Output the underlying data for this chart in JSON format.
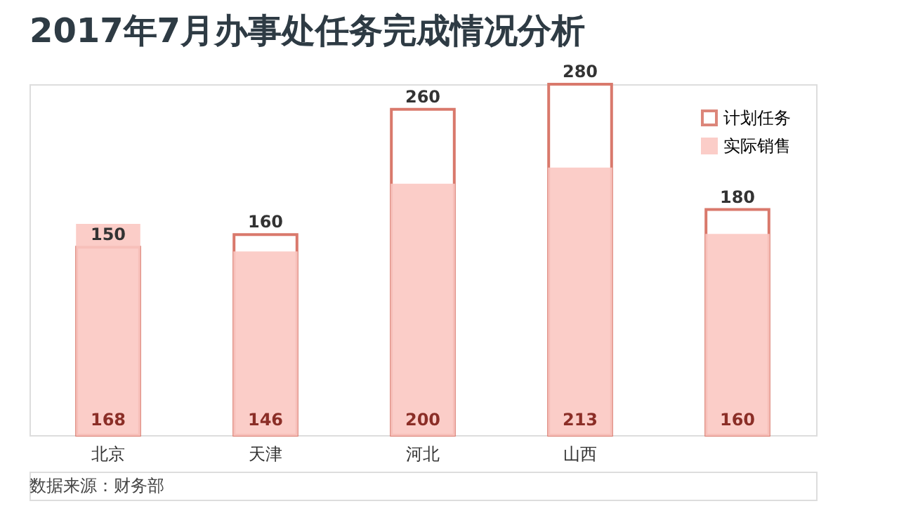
{
  "chart_data": {
    "type": "bar",
    "title": "2017年7月办事处任务完成情况分析",
    "categories": [
      "北京",
      "天津",
      "河北",
      "山西",
      null
    ],
    "series": [
      {
        "name": "计划任务",
        "color": "#d9796c",
        "values": [
          150,
          160,
          260,
          280,
          180
        ]
      },
      {
        "name": "实际销售",
        "color": "#fbc8c3",
        "values": [
          168,
          146,
          200,
          213,
          160
        ]
      }
    ],
    "data_labels": true,
    "legend": "top right",
    "annotations": [
      "数据来源：财务部"
    ]
  }
}
